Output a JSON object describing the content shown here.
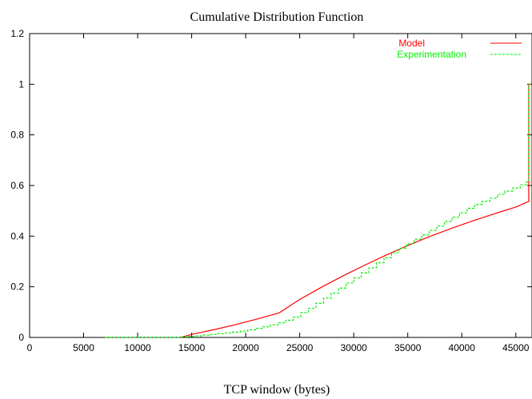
{
  "chart_data": {
    "type": "line",
    "title": "Cumulative Distribution Function",
    "xlabel": "TCP window (bytes)",
    "ylabel": "",
    "xlim": [
      0,
      46500
    ],
    "ylim": [
      0,
      1.2
    ],
    "xticks": [
      0,
      5000,
      10000,
      15000,
      20000,
      25000,
      30000,
      35000,
      40000,
      45000
    ],
    "yticks": [
      0,
      0.2,
      0.4,
      0.6,
      0.8,
      1,
      1.2
    ],
    "xtick_labels": [
      "0",
      "5000",
      "10000",
      "15000",
      "20000",
      "25000",
      "30000",
      "35000",
      "40000",
      "45000"
    ],
    "ytick_labels": [
      "0",
      "0.2",
      "0.4",
      "0.6",
      "0.8",
      "1",
      "1.2"
    ],
    "grid": false,
    "legend": "top-right",
    "series": [
      {
        "name": "Model",
        "color": "#ff0000",
        "style": "solid",
        "x": [
          14000,
          15000,
          17000,
          19000,
          21000,
          23100,
          25000,
          27000,
          29000,
          31000,
          33000,
          35000,
          37000,
          39000,
          41000,
          43000,
          45000,
          46200,
          46200,
          46400
        ],
        "y": [
          0,
          0.012,
          0.03,
          0.05,
          0.072,
          0.097,
          0.15,
          0.198,
          0.243,
          0.285,
          0.325,
          0.363,
          0.398,
          0.43,
          0.46,
          0.488,
          0.515,
          0.537,
          1.0,
          1.0
        ]
      },
      {
        "name": "Experimentation",
        "color": "#00ee00",
        "style": "dashed-step",
        "x": [
          7000,
          13500,
          14000,
          14600,
          15300,
          16000,
          16700,
          17400,
          18100,
          18800,
          19500,
          20200,
          20900,
          21600,
          22300,
          23000,
          23700,
          24400,
          25100,
          25800,
          26500,
          27200,
          27900,
          28600,
          29300,
          30000,
          30700,
          31400,
          32100,
          32800,
          33500,
          34200,
          34900,
          35600,
          36300,
          37000,
          37700,
          38400,
          39100,
          39800,
          40500,
          41200,
          41900,
          42600,
          43300,
          44000,
          44700,
          45400,
          46000,
          46200,
          46500
        ],
        "y": [
          0,
          0,
          0.002,
          0.004,
          0.006,
          0.009,
          0.012,
          0.015,
          0.018,
          0.021,
          0.025,
          0.03,
          0.036,
          0.042,
          0.05,
          0.058,
          0.068,
          0.08,
          0.098,
          0.115,
          0.135,
          0.155,
          0.175,
          0.195,
          0.215,
          0.235,
          0.255,
          0.275,
          0.295,
          0.315,
          0.335,
          0.352,
          0.37,
          0.388,
          0.405,
          0.423,
          0.44,
          0.458,
          0.475,
          0.492,
          0.51,
          0.525,
          0.538,
          0.55,
          0.565,
          0.578,
          0.59,
          0.603,
          0.615,
          1.0,
          1.0
        ]
      }
    ]
  }
}
